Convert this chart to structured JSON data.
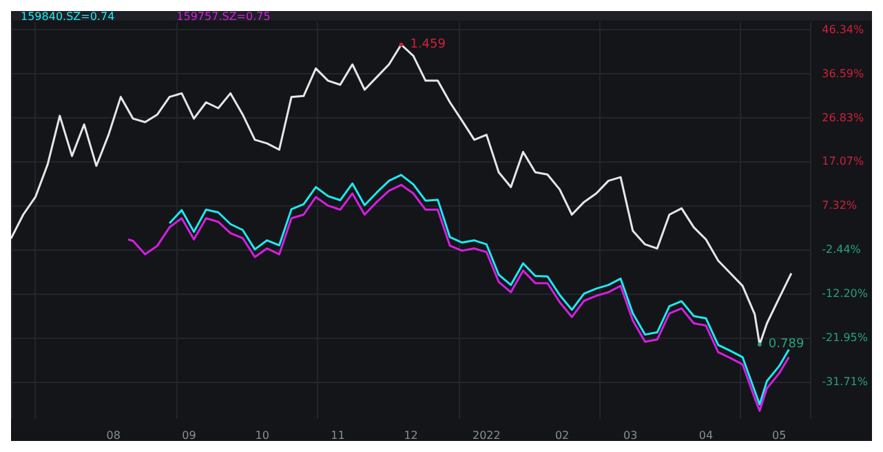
{
  "chart_data": {
    "type": "line",
    "xlim": [
      "2021-06-20",
      "2022-05-14"
    ],
    "ylim": [
      -40,
      48
    ],
    "xticks": [
      {
        "value": "2021-08-01",
        "label": "08"
      },
      {
        "value": "2021-09-01",
        "label": "09"
      },
      {
        "value": "2021-10-01",
        "label": "10"
      },
      {
        "value": "2021-11-01",
        "label": "11"
      },
      {
        "value": "2021-12-01",
        "label": "12"
      },
      {
        "value": "2022-01-01",
        "label": "2022"
      },
      {
        "value": "2022-02-01",
        "label": "02"
      },
      {
        "value": "2022-03-01",
        "label": "03"
      },
      {
        "value": "2022-04-01",
        "label": "04"
      },
      {
        "value": "2022-05-01",
        "label": "05"
      }
    ],
    "yticks": [
      {
        "value": 46.34,
        "label": "46.34%"
      },
      {
        "value": 36.59,
        "label": "36.59%"
      },
      {
        "value": 26.83,
        "label": "26.83%"
      },
      {
        "value": 17.07,
        "label": "17.07%"
      },
      {
        "value": 7.32,
        "label": "7.32%"
      },
      {
        "value": -2.44,
        "label": "-2.44%"
      },
      {
        "value": -12.2,
        "label": "-12.20%"
      },
      {
        "value": -21.95,
        "label": "-21.95%"
      },
      {
        "value": -31.71,
        "label": "-31.71%"
      }
    ],
    "grid": true,
    "legend": "top left",
    "marker": "none",
    "line_style": "solid",
    "annotations": [
      {
        "text": "1.459",
        "x": "2021-11-27",
        "y": 43
      },
      {
        "text": "0.789",
        "x": "2022-04-23",
        "y": -23.5
      }
    ],
    "series": [
      {
        "color": "#e6e6e6",
        "x": [
          "2021-06-20",
          "2021-06-25",
          "2021-06-30",
          "2021-07-05",
          "2021-07-10",
          "2021-07-15",
          "2021-07-20",
          "2021-07-25",
          "2021-07-30",
          "2021-08-04",
          "2021-08-09",
          "2021-08-14",
          "2021-08-19",
          "2021-08-24",
          "2021-08-29",
          "2021-09-03",
          "2021-09-08",
          "2021-09-13",
          "2021-09-18",
          "2021-09-23",
          "2021-09-28",
          "2021-10-03",
          "2021-10-08",
          "2021-10-13",
          "2021-10-18",
          "2021-10-23",
          "2021-10-28",
          "2021-11-02",
          "2021-11-07",
          "2021-11-12",
          "2021-11-17",
          "2021-11-22",
          "2021-11-27",
          "2021-12-02",
          "2021-12-07",
          "2021-12-12",
          "2021-12-17",
          "2021-12-22",
          "2021-12-27",
          "2022-01-01",
          "2022-01-06",
          "2022-01-11",
          "2022-01-16",
          "2022-01-21",
          "2022-01-26",
          "2022-01-31",
          "2022-02-05",
          "2022-02-10",
          "2022-02-15",
          "2022-02-20",
          "2022-02-25",
          "2022-03-02",
          "2022-03-07",
          "2022-03-12",
          "2022-03-17",
          "2022-03-22",
          "2022-03-27",
          "2022-04-01",
          "2022-04-06",
          "2022-04-11",
          "2022-04-16",
          "2022-04-21",
          "2022-04-23",
          "2022-04-26",
          "2022-05-01",
          "2022-05-06"
        ],
        "values": [
          0.0,
          5.3,
          9.2,
          16.4,
          27.2,
          18.3,
          25.3,
          16.1,
          23.0,
          31.4,
          26.6,
          25.8,
          27.5,
          31.4,
          32.2,
          26.6,
          30.2,
          28.9,
          32.2,
          27.5,
          21.9,
          21.1,
          19.7,
          31.4,
          31.6,
          37.7,
          35.0,
          34.1,
          38.6,
          33.0,
          35.8,
          38.6,
          43.0,
          40.5,
          35.0,
          35.0,
          30.2,
          26.1,
          21.9,
          23.0,
          14.7,
          11.4,
          19.2,
          14.7,
          14.2,
          10.9,
          5.3,
          8.1,
          10.0,
          12.8,
          13.6,
          1.7,
          -1.3,
          -2.2,
          5.3,
          6.7,
          2.5,
          -0.2,
          -4.9,
          -7.7,
          -10.5,
          -16.8,
          -23.5,
          -18.8,
          -13.2,
          -7.7
        ]
      },
      {
        "name": "159840.SZ=0.74",
        "color": "#1de9f0",
        "x": [
          "2021-08-24",
          "2021-08-29",
          "2021-09-03",
          "2021-09-08",
          "2021-09-13",
          "2021-09-18",
          "2021-09-23",
          "2021-09-28",
          "2021-10-03",
          "2021-10-08",
          "2021-10-13",
          "2021-10-18",
          "2021-10-23",
          "2021-10-28",
          "2021-11-02",
          "2021-11-07",
          "2021-11-12",
          "2021-11-17",
          "2021-11-22",
          "2021-11-27",
          "2021-12-02",
          "2021-12-07",
          "2021-12-12",
          "2021-12-17",
          "2021-12-22",
          "2021-12-27",
          "2022-01-01",
          "2022-01-06",
          "2022-01-11",
          "2022-01-16",
          "2022-01-21",
          "2022-01-26",
          "2022-01-31",
          "2022-02-05",
          "2022-02-10",
          "2022-02-15",
          "2022-02-20",
          "2022-02-25",
          "2022-03-02",
          "2022-03-07",
          "2022-03-12",
          "2022-03-17",
          "2022-03-22",
          "2022-03-27",
          "2022-04-01",
          "2022-04-06",
          "2022-04-11",
          "2022-04-16",
          "2022-04-21",
          "2022-04-23",
          "2022-04-26",
          "2022-05-01",
          "2022-05-05"
        ],
        "values": [
          3.4,
          6.3,
          1.5,
          6.4,
          5.8,
          3.2,
          1.9,
          -2.4,
          -0.4,
          -1.5,
          6.5,
          7.6,
          11.4,
          9.4,
          8.5,
          12.2,
          7.4,
          10.2,
          12.8,
          14.1,
          12.0,
          8.4,
          8.6,
          0.3,
          -0.9,
          -0.4,
          -1.3,
          -8.0,
          -10.3,
          -5.5,
          -8.3,
          -8.4,
          -12.5,
          -15.8,
          -12.2,
          -11.1,
          -10.3,
          -8.9,
          -16.6,
          -21.3,
          -20.8,
          -15.0,
          -13.9,
          -17.2,
          -17.7,
          -23.6,
          -24.9,
          -26.3,
          -33.8,
          -36.8,
          -31.6,
          -28.3,
          -24.6
        ]
      },
      {
        "name": "159757.SZ=0.75",
        "color": "#d41fe0",
        "x": [
          "2021-08-07",
          "2021-08-09",
          "2021-08-14",
          "2021-08-19",
          "2021-08-24",
          "2021-08-29",
          "2021-09-03",
          "2021-09-08",
          "2021-09-13",
          "2021-09-18",
          "2021-09-23",
          "2021-09-28",
          "2021-10-03",
          "2021-10-08",
          "2021-10-13",
          "2021-10-18",
          "2021-10-23",
          "2021-10-28",
          "2021-11-02",
          "2021-11-07",
          "2021-11-12",
          "2021-11-17",
          "2021-11-22",
          "2021-11-27",
          "2021-12-02",
          "2021-12-07",
          "2021-12-12",
          "2021-12-17",
          "2021-12-22",
          "2021-12-27",
          "2022-01-01",
          "2022-01-06",
          "2022-01-11",
          "2022-01-16",
          "2022-01-21",
          "2022-01-26",
          "2022-01-31",
          "2022-02-05",
          "2022-02-10",
          "2022-02-15",
          "2022-02-20",
          "2022-02-25",
          "2022-03-02",
          "2022-03-07",
          "2022-03-12",
          "2022-03-17",
          "2022-03-22",
          "2022-03-27",
          "2022-04-01",
          "2022-04-06",
          "2022-04-11",
          "2022-04-16",
          "2022-04-21",
          "2022-04-23",
          "2022-04-26",
          "2022-05-01",
          "2022-05-05"
        ],
        "values": [
          -0.2,
          -0.5,
          -3.5,
          -1.6,
          2.5,
          4.5,
          -0.2,
          4.5,
          3.7,
          1.2,
          0.1,
          -4.1,
          -2.2,
          -3.5,
          4.5,
          5.3,
          9.2,
          7.3,
          6.4,
          10.0,
          5.3,
          8.1,
          10.6,
          11.9,
          10.0,
          6.4,
          6.4,
          -1.6,
          -2.7,
          -2.2,
          -3.0,
          -9.6,
          -11.9,
          -7.1,
          -9.9,
          -9.9,
          -14.1,
          -17.4,
          -13.8,
          -12.7,
          -11.9,
          -10.5,
          -18.2,
          -22.9,
          -22.4,
          -16.6,
          -15.5,
          -18.8,
          -19.3,
          -25.2,
          -26.5,
          -27.9,
          -35.4,
          -38.2,
          -33.2,
          -29.9,
          -26.3
        ]
      }
    ]
  }
}
